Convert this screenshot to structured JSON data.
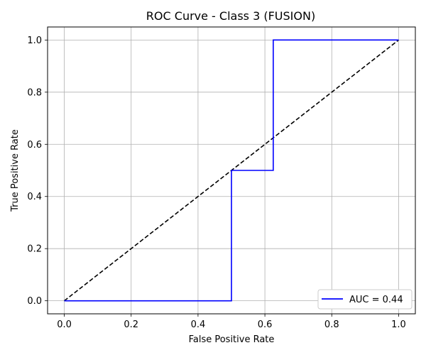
{
  "chart_data": {
    "type": "line",
    "title": "ROC Curve - Class 3 (FUSION)",
    "xlabel": "False Positive Rate",
    "ylabel": "True Positive Rate",
    "xlim": [
      -0.05,
      1.05
    ],
    "ylim": [
      -0.05,
      1.05
    ],
    "xticks": [
      0.0,
      0.2,
      0.4,
      0.6,
      0.8,
      1.0
    ],
    "yticks": [
      0.0,
      0.2,
      0.4,
      0.6,
      0.8,
      1.0
    ],
    "xtick_labels": [
      "0.0",
      "0.2",
      "0.4",
      "0.6",
      "0.8",
      "1.0"
    ],
    "ytick_labels": [
      "0.0",
      "0.2",
      "0.4",
      "0.6",
      "0.8",
      "1.0"
    ],
    "grid": true,
    "legend_position": "lower-right",
    "series": [
      {
        "name": "AUC = 0.44",
        "color": "#0000ff",
        "style": "solid",
        "x": [
          0.0,
          0.5,
          0.5,
          0.625,
          0.625,
          1.0
        ],
        "y": [
          0.0,
          0.0,
          0.5,
          0.5,
          1.0,
          1.0
        ]
      },
      {
        "color": "#000000",
        "style": "dashed",
        "x": [
          0.0,
          1.0
        ],
        "y": [
          0.0,
          1.0
        ]
      }
    ]
  }
}
